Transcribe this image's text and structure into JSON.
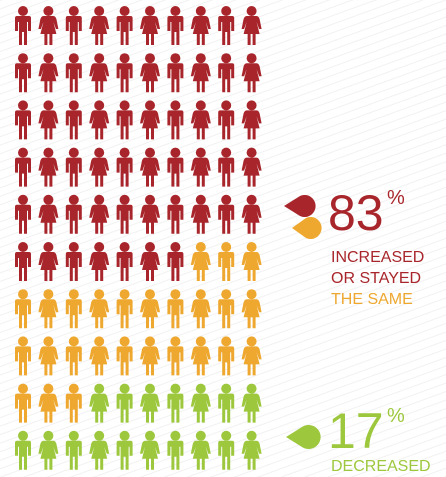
{
  "chart_data": {
    "type": "waffle",
    "values": [
      57,
      26,
      17
    ],
    "colors": [
      "#a8262b",
      "#eea82f",
      "#9dc83d"
    ],
    "columns": 10,
    "callouts": [
      {
        "value": 83,
        "unit": "%",
        "lines": [
          "INCREASED",
          "OR STAYED",
          "THE SAME"
        ],
        "line_colors": [
          "#a8262b",
          "#a8262b",
          "#eea82f"
        ],
        "color": "#a8262b"
      },
      {
        "value": 17,
        "unit": "%",
        "lines": [
          "DECREASED"
        ],
        "line_colors": [
          "#9dc83d"
        ],
        "color": "#9dc83d"
      }
    ]
  }
}
